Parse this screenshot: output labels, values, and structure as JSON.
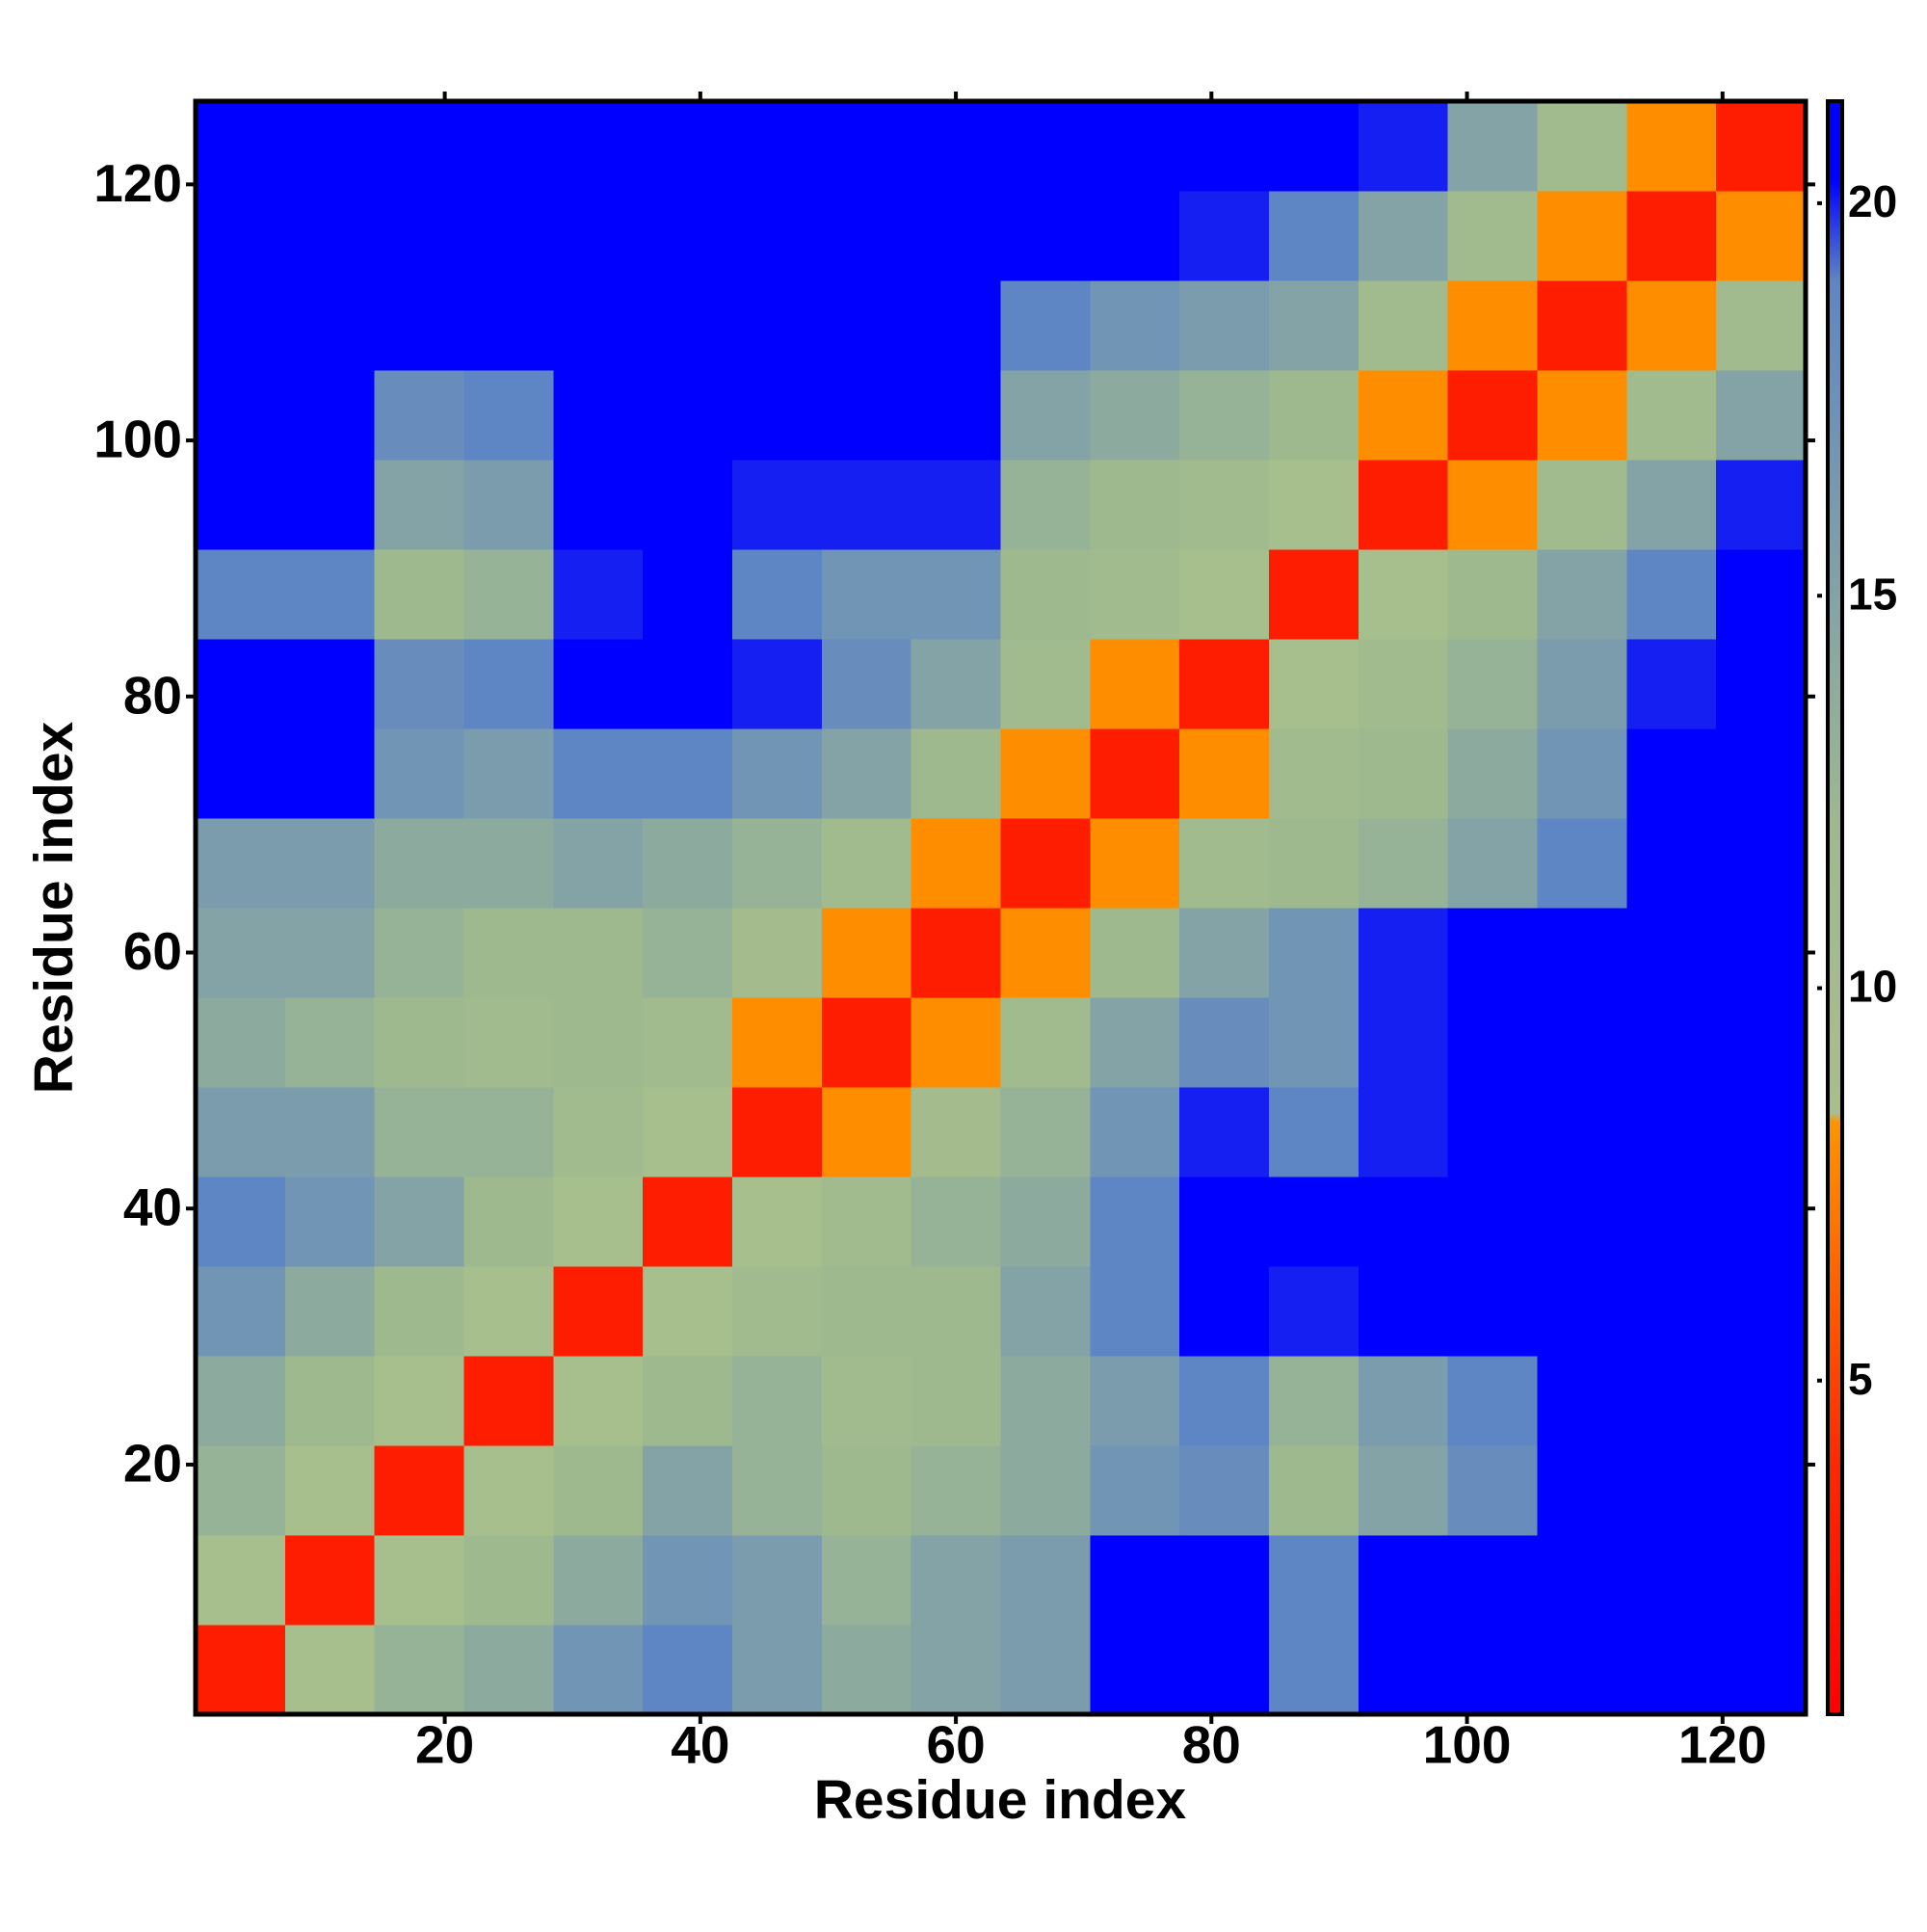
{
  "chart_data": {
    "type": "heatmap",
    "xlabel": "Residue index",
    "ylabel": "Residue index",
    "xlim": [
      0.5,
      126.5
    ],
    "ylim": [
      0.5,
      126.5
    ],
    "xticks": [
      20,
      40,
      60,
      80,
      100,
      120
    ],
    "yticks": [
      20,
      40,
      60,
      80,
      100,
      120
    ],
    "xbins": [
      0.5,
      7.5,
      14.5,
      21.5,
      28.5,
      35.5,
      42.5,
      49.5,
      56.5,
      63.5,
      70.5,
      77.5,
      84.5,
      91.5,
      98.5,
      105.5,
      112.5,
      119.5,
      126.5
    ],
    "ybins": [
      0.5,
      7.5,
      14.5,
      21.5,
      28.5,
      35.5,
      42.5,
      49.5,
      56.5,
      63.5,
      70.5,
      77.5,
      84.5,
      91.5,
      98.5,
      105.5,
      112.5,
      119.5,
      126.5
    ],
    "z": [
      [
        3,
        9,
        13,
        14,
        17,
        19,
        16,
        14,
        15,
        16,
        21,
        21,
        19,
        21,
        21,
        21,
        21,
        21
      ],
      [
        9,
        3,
        9,
        12,
        14,
        17,
        16,
        13,
        15,
        16,
        21,
        21,
        19,
        21,
        21,
        21,
        21,
        21
      ],
      [
        13,
        9,
        3,
        9,
        12,
        15,
        13,
        12,
        13,
        14,
        17,
        18,
        12,
        15,
        18,
        21,
        21,
        21
      ],
      [
        14,
        12,
        9,
        3,
        9,
        12,
        13,
        11,
        12,
        14,
        16,
        19,
        13,
        16,
        19,
        21,
        21,
        21
      ],
      [
        17,
        14,
        12,
        9,
        3,
        9,
        11,
        12,
        12,
        15,
        19,
        21,
        20,
        21,
        21,
        21,
        21,
        21
      ],
      [
        19,
        17,
        15,
        12,
        9,
        3,
        9,
        11,
        13,
        14,
        19,
        21,
        21,
        21,
        21,
        21,
        21,
        21
      ],
      [
        16,
        16,
        13,
        13,
        11,
        9,
        3,
        8,
        10,
        13,
        17,
        20,
        19,
        20,
        21,
        21,
        21,
        21
      ],
      [
        14,
        13,
        12,
        11,
        12,
        11,
        8,
        3,
        8,
        11,
        15,
        18,
        17,
        20,
        21,
        21,
        21,
        21
      ],
      [
        15,
        15,
        13,
        12,
        12,
        13,
        10,
        8,
        3,
        8,
        12,
        15,
        17,
        20,
        21,
        21,
        21,
        21
      ],
      [
        16,
        16,
        14,
        14,
        15,
        14,
        13,
        11,
        8,
        3,
        8,
        11,
        12,
        13,
        15,
        19,
        21,
        21
      ],
      [
        21,
        21,
        17,
        16,
        19,
        19,
        17,
        15,
        12,
        8,
        3,
        8,
        11,
        12,
        14,
        17,
        21,
        21
      ],
      [
        21,
        21,
        18,
        19,
        21,
        21,
        20,
        18,
        15,
        11,
        8,
        3,
        9,
        11,
        13,
        16,
        20,
        21
      ],
      [
        19,
        19,
        12,
        13,
        20,
        21,
        19,
        17,
        17,
        12,
        11,
        9,
        3,
        9,
        12,
        15,
        19,
        21
      ],
      [
        21,
        21,
        15,
        16,
        21,
        21,
        20,
        20,
        20,
        13,
        12,
        11,
        9,
        3,
        8,
        11,
        15,
        20
      ],
      [
        21,
        21,
        18,
        19,
        21,
        21,
        21,
        21,
        21,
        15,
        14,
        13,
        12,
        8,
        3,
        8,
        11,
        15
      ],
      [
        21,
        21,
        21,
        21,
        21,
        21,
        21,
        21,
        21,
        19,
        17,
        16,
        15,
        11,
        8,
        3,
        8,
        11
      ],
      [
        21,
        21,
        21,
        21,
        21,
        21,
        21,
        21,
        21,
        21,
        21,
        20,
        19,
        15,
        11,
        8,
        3,
        8
      ],
      [
        21,
        21,
        21,
        21,
        21,
        21,
        21,
        21,
        21,
        21,
        21,
        21,
        21,
        20,
        15,
        11,
        8,
        3
      ]
    ],
    "colorbar": {
      "lim": [
        0.75,
        21.3
      ],
      "ticks": [
        5,
        10,
        15,
        20
      ],
      "colorscale": [
        [
          0.75,
          "#ff0000"
        ],
        [
          4,
          "#ff2a00"
        ],
        [
          8.3,
          "#ff9400"
        ],
        [
          8.4,
          "#a8bf8c"
        ],
        [
          12,
          "#9fb98f"
        ],
        [
          19,
          "#5f86c4"
        ],
        [
          20.3,
          "#0000ff"
        ],
        [
          21.3,
          "#0000ff"
        ]
      ]
    }
  }
}
